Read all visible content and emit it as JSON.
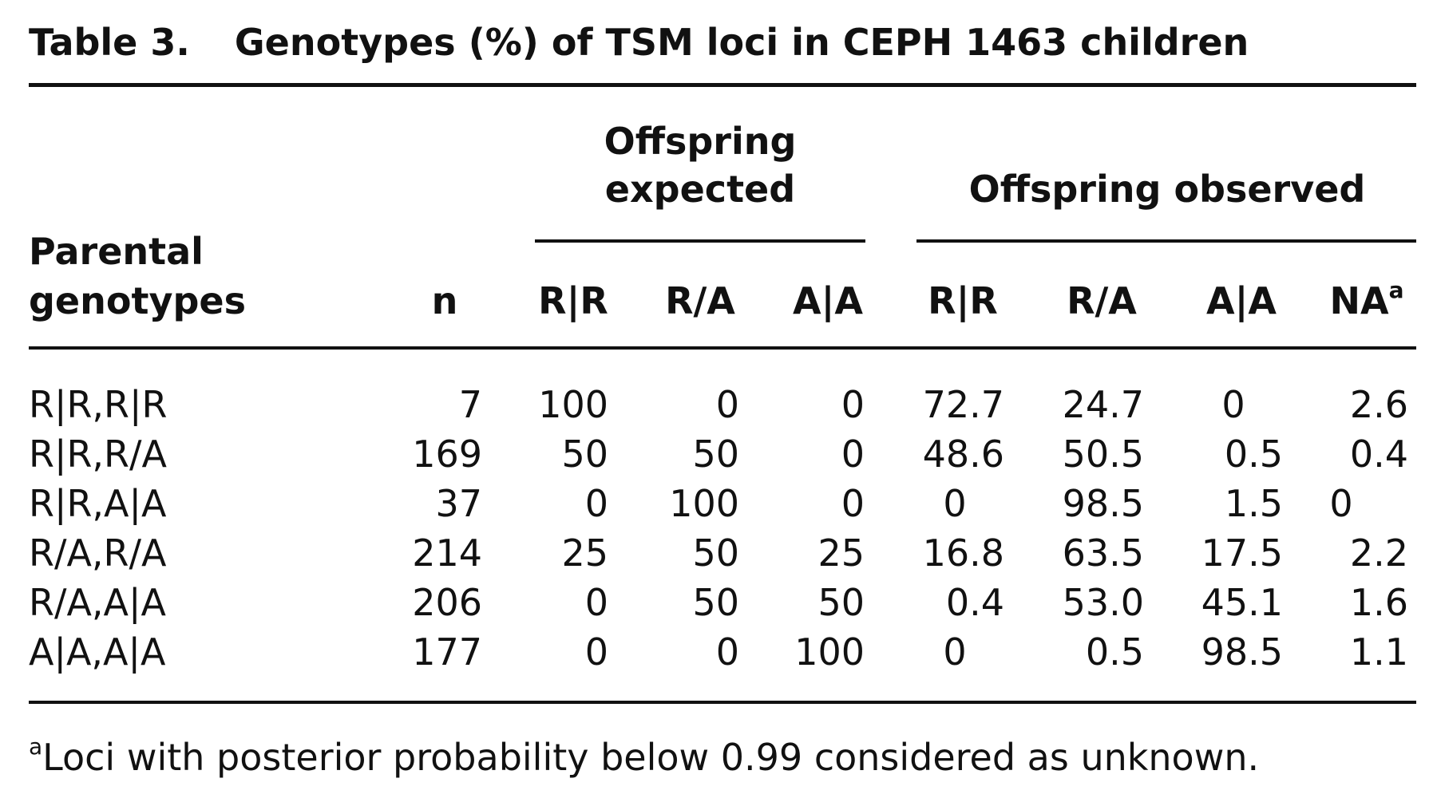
{
  "table": {
    "caption_label": "Table 3.",
    "caption_title": "Genotypes (%) of TSM loci in CEPH 1463 children",
    "group_expected_line1": "Offspring",
    "group_expected_line2": "expected",
    "group_observed": "Offspring observed",
    "col_parental_line1": "Parental",
    "col_parental_line2": "genotypes",
    "col_n": "n",
    "sub_columns": [
      "R|R",
      "R/A",
      "A|A",
      "R|R",
      "R/A",
      "A|A",
      "NA"
    ],
    "na_marker": "a",
    "rows": [
      {
        "parental": "R|R,R|R",
        "n": "7",
        "exp": [
          "100",
          "0",
          "0"
        ],
        "obs": [
          "72.7",
          "24.7",
          "0",
          "2.6"
        ]
      },
      {
        "parental": "R|R,R/A",
        "n": "169",
        "exp": [
          "50",
          "50",
          "0"
        ],
        "obs": [
          "48.6",
          "50.5",
          "0.5",
          "0.4"
        ]
      },
      {
        "parental": "R|R,A|A",
        "n": "37",
        "exp": [
          "0",
          "100",
          "0"
        ],
        "obs": [
          "0",
          "98.5",
          "1.5",
          "0"
        ]
      },
      {
        "parental": "R/A,R/A",
        "n": "214",
        "exp": [
          "25",
          "50",
          "25"
        ],
        "obs": [
          "16.8",
          "63.5",
          "17.5",
          "2.2"
        ]
      },
      {
        "parental": "R/A,A|A",
        "n": "206",
        "exp": [
          "0",
          "50",
          "50"
        ],
        "obs": [
          "0.4",
          "53.0",
          "45.1",
          "1.6"
        ]
      },
      {
        "parental": "A|A,A|A",
        "n": "177",
        "exp": [
          "0",
          "0",
          "100"
        ],
        "obs": [
          "0",
          "0.5",
          "98.5",
          "1.1"
        ]
      }
    ],
    "footnote_marker": "a",
    "footnote_text": "Loci with posterior probability below 0.99 considered as unknown."
  }
}
